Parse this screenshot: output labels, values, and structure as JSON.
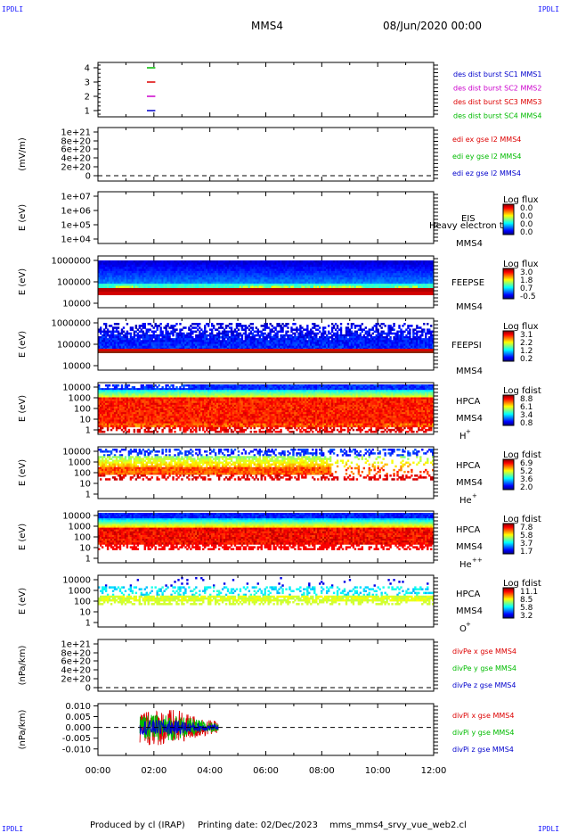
{
  "header": {
    "title": "MMS4",
    "date": "08/Jun/2020 00:00",
    "corner_label": "IPDLI"
  },
  "footer": {
    "produced": "Produced by cl (IRAP)",
    "printing": "Printing date: 02/Dec/2023",
    "file": "mms_mms4_srvy_vue_web2.cl"
  },
  "chart_data": [
    {
      "type": "line",
      "panel": "des-dist-burst",
      "ylim": [
        0.5,
        4.5
      ],
      "y_ticks": [
        "4",
        "3",
        "2",
        "1"
      ],
      "legend": [
        {
          "label": "des dist burst SC1 MMS1",
          "color": "#0000cc"
        },
        {
          "label": "des dist burst SC2 MMS2",
          "color": "#cc00cc"
        },
        {
          "label": "des dist burst SC3 MMS3",
          "color": "#dd0000"
        },
        {
          "label": "des dist burst SC4 MMS4",
          "color": "#00bb00"
        }
      ]
    },
    {
      "type": "line",
      "panel": "edi-e",
      "ylabel": "(mV/m)",
      "y_ticks": [
        "1e+21",
        "8e+20",
        "6e+20",
        "4e+20",
        "2e+20",
        "0"
      ],
      "legend": [
        {
          "label": "edi ex gse l2 MMS4",
          "color": "#dd0000"
        },
        {
          "label": "edi ey gse l2 MMS4",
          "color": "#00bb00"
        },
        {
          "label": "edi ez gse l2 MMS4",
          "color": "#0000cc"
        }
      ]
    },
    {
      "type": "heatmap",
      "panel": "eis",
      "ylabel": "E (eV)",
      "y_ticks": [
        "1e+07",
        "1e+06",
        "1e+05",
        "1e+04"
      ],
      "labels": [
        "EIS",
        "MMS4"
      ],
      "overlay_text": "Heavy electron to",
      "colorbar": {
        "title": "Log flux",
        "ticks": [
          "0.0",
          "0.0",
          "0.0",
          "0.0"
        ]
      }
    },
    {
      "type": "heatmap",
      "panel": "feeps-e",
      "ylabel": "E (eV)",
      "y_ticks": [
        "1000000",
        "100000",
        "10000"
      ],
      "labels": [
        "FEEPSE",
        "MMS4"
      ],
      "colorbar": {
        "title": "Log flux",
        "ticks": [
          "3.0",
          "1.8",
          "0.7",
          "-0.5"
        ]
      }
    },
    {
      "type": "heatmap",
      "panel": "feeps-i",
      "ylabel": "E (eV)",
      "y_ticks": [
        "1000000",
        "100000",
        "10000"
      ],
      "labels": [
        "FEEPSI",
        "MMS4"
      ],
      "colorbar": {
        "title": "Log flux",
        "ticks": [
          "3.1",
          "2.2",
          "1.2",
          "0.2"
        ]
      }
    },
    {
      "type": "heatmap",
      "panel": "hpca-h",
      "ylabel": "E (eV)",
      "y_ticks": [
        "10000",
        "1000",
        "100",
        "10",
        "1"
      ],
      "labels": [
        "HPCA",
        "MMS4"
      ],
      "species": "H",
      "species_sup": "+",
      "colorbar": {
        "title": "Log fdist",
        "ticks": [
          "8.8",
          "6.1",
          "3.4",
          "0.8"
        ]
      }
    },
    {
      "type": "heatmap",
      "panel": "hpca-he",
      "ylabel": "E (eV)",
      "y_ticks": [
        "10000",
        "1000",
        "100",
        "10",
        "1"
      ],
      "labels": [
        "HPCA",
        "MMS4"
      ],
      "species": "He",
      "species_sup": "+",
      "colorbar": {
        "title": "Log fdist",
        "ticks": [
          "6.9",
          "5.2",
          "3.6",
          "2.0"
        ]
      }
    },
    {
      "type": "heatmap",
      "panel": "hpca-hepp",
      "ylabel": "E (eV)",
      "y_ticks": [
        "10000",
        "1000",
        "100",
        "10",
        "1"
      ],
      "labels": [
        "HPCA",
        "MMS4"
      ],
      "species": "He",
      "species_sup": "++",
      "colorbar": {
        "title": "Log fdist",
        "ticks": [
          "7.8",
          "5.8",
          "3.7",
          "1.7"
        ]
      }
    },
    {
      "type": "heatmap",
      "panel": "hpca-o",
      "ylabel": "E (eV)",
      "y_ticks": [
        "10000",
        "1000",
        "100",
        "10",
        "1"
      ],
      "labels": [
        "HPCA",
        "MMS4"
      ],
      "species": "O",
      "species_sup": "+",
      "colorbar": {
        "title": "Log fdist",
        "ticks": [
          "11.1",
          "8.5",
          "5.8",
          "3.2"
        ]
      }
    },
    {
      "type": "line",
      "panel": "divpe",
      "ylabel": "(nPa/km)",
      "y_ticks": [
        "1e+21",
        "8e+20",
        "6e+20",
        "4e+20",
        "2e+20",
        "0"
      ],
      "legend": [
        {
          "label": "divPe x gse MMS4",
          "color": "#dd0000"
        },
        {
          "label": "divPe y gse MMS4",
          "color": "#00bb00"
        },
        {
          "label": "divPe z gse MMS4",
          "color": "#0000cc"
        }
      ]
    },
    {
      "type": "line",
      "panel": "divpi",
      "ylabel": "(nPa/km)",
      "ylim": [
        -0.013,
        0.011
      ],
      "y_ticks": [
        "0.010",
        "0.005",
        "0.000",
        "-0.005",
        "-0.010"
      ],
      "activity_hours": [
        1.5,
        4.3
      ],
      "legend": [
        {
          "label": "divPi x gse MMS4",
          "color": "#dd0000"
        },
        {
          "label": "divPi y gse MMS4",
          "color": "#00bb00"
        },
        {
          "label": "divPi z gse MMS4",
          "color": "#0000cc"
        }
      ]
    }
  ],
  "x_axis": {
    "xlim_hours": [
      0,
      12
    ],
    "ticks": [
      "00:00",
      "02:00",
      "04:00",
      "06:00",
      "08:00",
      "10:00",
      "12:00"
    ]
  }
}
